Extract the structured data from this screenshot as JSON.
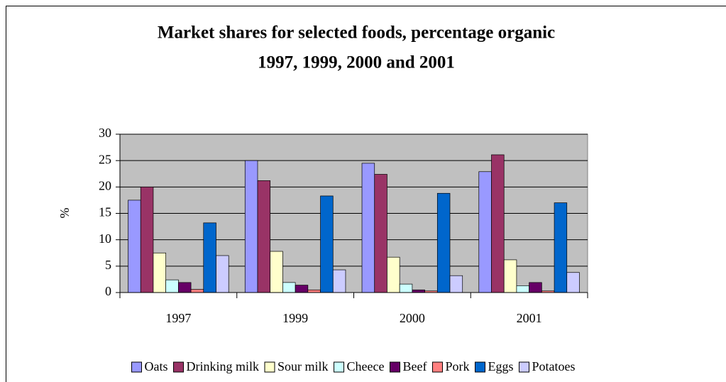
{
  "chart_data": {
    "type": "bar",
    "title": "Market shares for selected foods, percentage organic",
    "subtitle": "1997, 1999, 2000 and 2001",
    "y_label": "%",
    "categories": [
      "1997",
      "1999",
      "2000",
      "2001"
    ],
    "series": [
      {
        "name": "Oats",
        "color": "#9999ff",
        "values": [
          17.5,
          25,
          24.5,
          22.9
        ]
      },
      {
        "name": "Drinking milk",
        "color": "#993366",
        "values": [
          20,
          21.2,
          22.4,
          26.1
        ]
      },
      {
        "name": "Sour milk",
        "color": "#ffffcc",
        "values": [
          7.5,
          7.8,
          6.7,
          6.2
        ]
      },
      {
        "name": "Cheece",
        "color": "#ccffff",
        "values": [
          2.4,
          1.9,
          1.6,
          1.3
        ]
      },
      {
        "name": "Beef",
        "color": "#660066",
        "values": [
          1.9,
          1.4,
          0.5,
          1.9
        ]
      },
      {
        "name": "Pork",
        "color": "#ff8080",
        "values": [
          0.6,
          0.5,
          0.3,
          0.3
        ]
      },
      {
        "name": "Eggs",
        "color": "#0066cc",
        "values": [
          13.2,
          18.3,
          18.8,
          17
        ]
      },
      {
        "name": "Potatoes",
        "color": "#ccccff",
        "values": [
          7,
          4.3,
          3.2,
          3.8
        ]
      }
    ],
    "ylim": [
      0,
      30
    ],
    "yticks": [
      0,
      5,
      10,
      15,
      20,
      25,
      30
    ],
    "grid": true,
    "legend": "bottom"
  }
}
